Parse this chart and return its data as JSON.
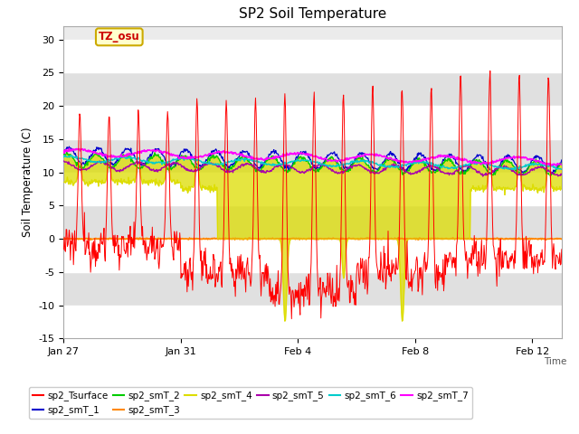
{
  "title": "SP2 Soil Temperature",
  "xlabel": "Time",
  "ylabel": "Soil Temperature (C)",
  "ylim": [
    -15,
    32
  ],
  "yticks": [
    -15,
    -10,
    -5,
    0,
    5,
    10,
    15,
    20,
    25,
    30
  ],
  "background_color": "#ffffff",
  "plot_bg_color": "#ebebeb",
  "band_color_light": "#ffffff",
  "band_color_dark": "#e0e0e0",
  "annotation_text": "TZ_osu",
  "annotation_color": "#cc0000",
  "annotation_bg": "#ffffcc",
  "annotation_border": "#ccaa00",
  "series_colors": {
    "sp2_Tsurface": "#ff0000",
    "sp2_smT_1": "#0000cc",
    "sp2_smT_2": "#00cc00",
    "sp2_smT_3": "#ff8800",
    "sp2_smT_4": "#dddd00",
    "sp2_smT_5": "#aa00aa",
    "sp2_smT_6": "#00cccc",
    "sp2_smT_7": "#ff00ff"
  },
  "xtick_labels": [
    "Jan 27",
    "Jan 31",
    "Feb 4",
    "Feb 8",
    "Feb 12"
  ],
  "xtick_days": [
    0,
    4,
    8,
    12,
    16
  ]
}
